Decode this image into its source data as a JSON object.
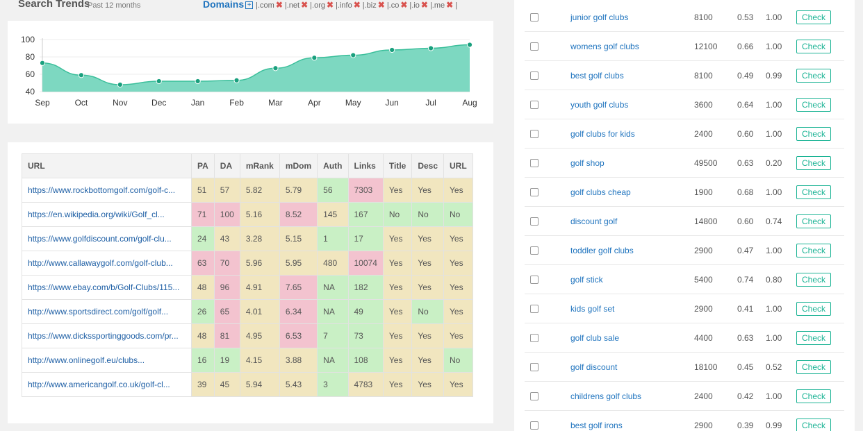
{
  "trends": {
    "title": "Search Trends",
    "subtitle": "Past 12 months",
    "domains_label": "Domains",
    "domains_plus": "+",
    "tlds": [
      "|.com",
      "|.net",
      "|.org",
      "|.info",
      "|.biz",
      "|.co",
      "|.io",
      "|.me"
    ],
    "remove_glyph": "✖",
    "end_bar": "|"
  },
  "chart_data": {
    "type": "area",
    "categories": [
      "Sep",
      "Oct",
      "Nov",
      "Dec",
      "Jan",
      "Feb",
      "Mar",
      "Apr",
      "May",
      "Jun",
      "Jul",
      "Aug"
    ],
    "values": [
      73,
      59,
      48,
      52,
      52,
      53,
      67,
      79,
      82,
      88,
      90,
      94
    ],
    "yticks": [
      40,
      60,
      80,
      100
    ],
    "ylim": [
      40,
      100
    ],
    "color": "#7dd8c1",
    "line_color": "#3bbf9b",
    "point_color": "#1aa07e"
  },
  "serp": {
    "headers": [
      "URL",
      "PA",
      "DA",
      "mRank",
      "mDom",
      "Auth",
      "Links",
      "Title",
      "Desc",
      "URL"
    ],
    "rows": [
      {
        "url": "https://www.rockbottomgolf.com/golf-c...",
        "cells": [
          [
            "51",
            "y"
          ],
          [
            "57",
            "y"
          ],
          [
            "5.82",
            "y"
          ],
          [
            "5.79",
            "y"
          ],
          [
            "56",
            "g"
          ],
          [
            "7303",
            "r"
          ],
          [
            "Yes",
            "y"
          ],
          [
            "Yes",
            "y"
          ],
          [
            "Yes",
            "y"
          ]
        ]
      },
      {
        "url": "https://en.wikipedia.org/wiki/Golf_cl...",
        "cells": [
          [
            "71",
            "r"
          ],
          [
            "100",
            "r"
          ],
          [
            "5.16",
            "y"
          ],
          [
            "8.52",
            "r"
          ],
          [
            "145",
            "y"
          ],
          [
            "167",
            "g"
          ],
          [
            "No",
            "g"
          ],
          [
            "No",
            "g"
          ],
          [
            "No",
            "g"
          ]
        ]
      },
      {
        "url": "https://www.golfdiscount.com/golf-clu...",
        "cells": [
          [
            "24",
            "g"
          ],
          [
            "43",
            "y"
          ],
          [
            "3.28",
            "y"
          ],
          [
            "5.15",
            "y"
          ],
          [
            "1",
            "g"
          ],
          [
            "17",
            "g"
          ],
          [
            "Yes",
            "y"
          ],
          [
            "Yes",
            "y"
          ],
          [
            "Yes",
            "y"
          ]
        ]
      },
      {
        "url": "http://www.callawaygolf.com/golf-club...",
        "cells": [
          [
            "63",
            "r"
          ],
          [
            "70",
            "r"
          ],
          [
            "5.96",
            "y"
          ],
          [
            "5.95",
            "y"
          ],
          [
            "480",
            "y"
          ],
          [
            "10074",
            "r"
          ],
          [
            "Yes",
            "y"
          ],
          [
            "Yes",
            "y"
          ],
          [
            "Yes",
            "y"
          ]
        ]
      },
      {
        "url": "https://www.ebay.com/b/Golf-Clubs/115...",
        "cells": [
          [
            "48",
            "y"
          ],
          [
            "96",
            "r"
          ],
          [
            "4.91",
            "y"
          ],
          [
            "7.65",
            "r"
          ],
          [
            "NA",
            "g"
          ],
          [
            "182",
            "g"
          ],
          [
            "Yes",
            "y"
          ],
          [
            "Yes",
            "y"
          ],
          [
            "Yes",
            "y"
          ]
        ]
      },
      {
        "url": "http://www.sportsdirect.com/golf/golf...",
        "cells": [
          [
            "26",
            "g"
          ],
          [
            "65",
            "r"
          ],
          [
            "4.01",
            "y"
          ],
          [
            "6.34",
            "r"
          ],
          [
            "NA",
            "g"
          ],
          [
            "49",
            "g"
          ],
          [
            "Yes",
            "y"
          ],
          [
            "No",
            "g"
          ],
          [
            "Yes",
            "y"
          ]
        ]
      },
      {
        "url": "https://www.dickssportinggoods.com/pr...",
        "cells": [
          [
            "48",
            "y"
          ],
          [
            "81",
            "r"
          ],
          [
            "4.95",
            "y"
          ],
          [
            "6.53",
            "r"
          ],
          [
            "7",
            "g"
          ],
          [
            "73",
            "g"
          ],
          [
            "Yes",
            "y"
          ],
          [
            "Yes",
            "y"
          ],
          [
            "Yes",
            "y"
          ]
        ]
      },
      {
        "url": "http://www.onlinegolf.eu/clubs...",
        "cells": [
          [
            "16",
            "g"
          ],
          [
            "19",
            "g"
          ],
          [
            "4.15",
            "y"
          ],
          [
            "3.88",
            "y"
          ],
          [
            "NA",
            "g"
          ],
          [
            "108",
            "g"
          ],
          [
            "Yes",
            "y"
          ],
          [
            "Yes",
            "y"
          ],
          [
            "No",
            "g"
          ]
        ]
      },
      {
        "url": "http://www.americangolf.co.uk/golf-cl...",
        "cells": [
          [
            "39",
            "y"
          ],
          [
            "45",
            "y"
          ],
          [
            "5.94",
            "y"
          ],
          [
            "5.43",
            "y"
          ],
          [
            "3",
            "g"
          ],
          [
            "4783",
            "y"
          ],
          [
            "Yes",
            "y"
          ],
          [
            "Yes",
            "y"
          ],
          [
            "Yes",
            "y"
          ]
        ]
      }
    ]
  },
  "keywords": {
    "button_label": "Check",
    "rows": [
      {
        "name": "junior golf clubs",
        "volume": "8100",
        "v1": "0.53",
        "v2": "1.00"
      },
      {
        "name": "womens golf clubs",
        "volume": "12100",
        "v1": "0.66",
        "v2": "1.00"
      },
      {
        "name": "best golf clubs",
        "volume": "8100",
        "v1": "0.49",
        "v2": "0.99"
      },
      {
        "name": "youth golf clubs",
        "volume": "3600",
        "v1": "0.64",
        "v2": "1.00"
      },
      {
        "name": "golf clubs for kids",
        "volume": "2400",
        "v1": "0.60",
        "v2": "1.00"
      },
      {
        "name": "golf shop",
        "volume": "49500",
        "v1": "0.63",
        "v2": "0.20"
      },
      {
        "name": "golf clubs cheap",
        "volume": "1900",
        "v1": "0.68",
        "v2": "1.00"
      },
      {
        "name": "discount golf",
        "volume": "14800",
        "v1": "0.60",
        "v2": "0.74"
      },
      {
        "name": "toddler golf clubs",
        "volume": "2900",
        "v1": "0.47",
        "v2": "1.00"
      },
      {
        "name": "golf stick",
        "volume": "5400",
        "v1": "0.74",
        "v2": "0.80"
      },
      {
        "name": "kids golf set",
        "volume": "2900",
        "v1": "0.41",
        "v2": "1.00"
      },
      {
        "name": "golf club sale",
        "volume": "4400",
        "v1": "0.63",
        "v2": "1.00"
      },
      {
        "name": "golf discount",
        "volume": "18100",
        "v1": "0.45",
        "v2": "0.52"
      },
      {
        "name": "childrens golf clubs",
        "volume": "2400",
        "v1": "0.42",
        "v2": "1.00"
      },
      {
        "name": "best golf irons",
        "volume": "2900",
        "v1": "0.39",
        "v2": "0.99"
      }
    ]
  }
}
